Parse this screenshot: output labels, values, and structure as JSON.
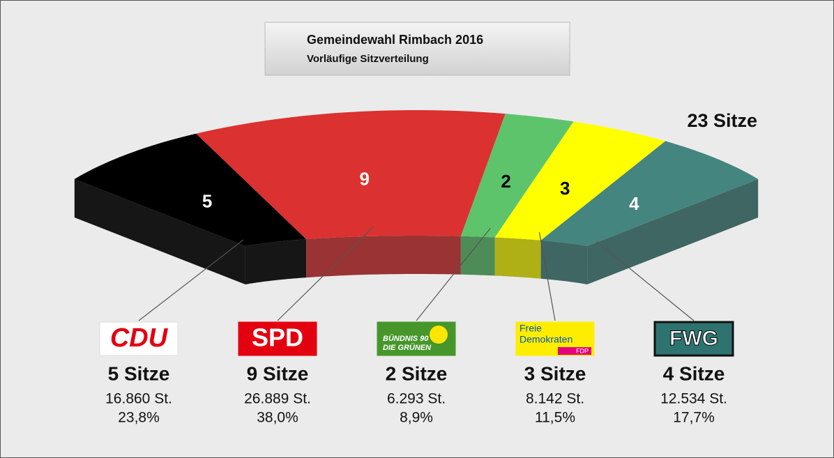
{
  "chart_data": {
    "type": "arc",
    "title": "Gemeindewahl Rimbach 2016",
    "subtitle": "Vorläufige Sitzverteilung",
    "total": 23,
    "total_label": "23 Sitze",
    "categories": [
      [
        "CDU"
      ],
      [
        "SPD"
      ],
      [
        "BÜNDNIS 90",
        "DIE GRÜNEN"
      ],
      [
        "Freie",
        "Demokraten",
        "FDP"
      ],
      [
        "FWG"
      ]
    ],
    "values": [
      5,
      9,
      2,
      3,
      4
    ],
    "value_labels": [
      "5 Sitze",
      "9 Sitze",
      "2 Sitze",
      "3 Sitze",
      "4 Sitze"
    ],
    "colors": [
      "#000000",
      "#dc3131",
      "#5ec46c",
      "#ffff00",
      "#45857f"
    ],
    "votes": [
      16860,
      26889,
      6293,
      8142,
      12534
    ],
    "vote_labels": [
      "16.860 St.",
      "26.889 St.",
      "6.293 St.",
      "8.142 St.",
      "12.534 St."
    ],
    "percent": [
      23.8,
      38.0,
      8.9,
      11.5,
      17.7
    ],
    "percent_labels": [
      "23,8%",
      "38,0%",
      "8,9%",
      "11,5%",
      "17,7%"
    ]
  }
}
